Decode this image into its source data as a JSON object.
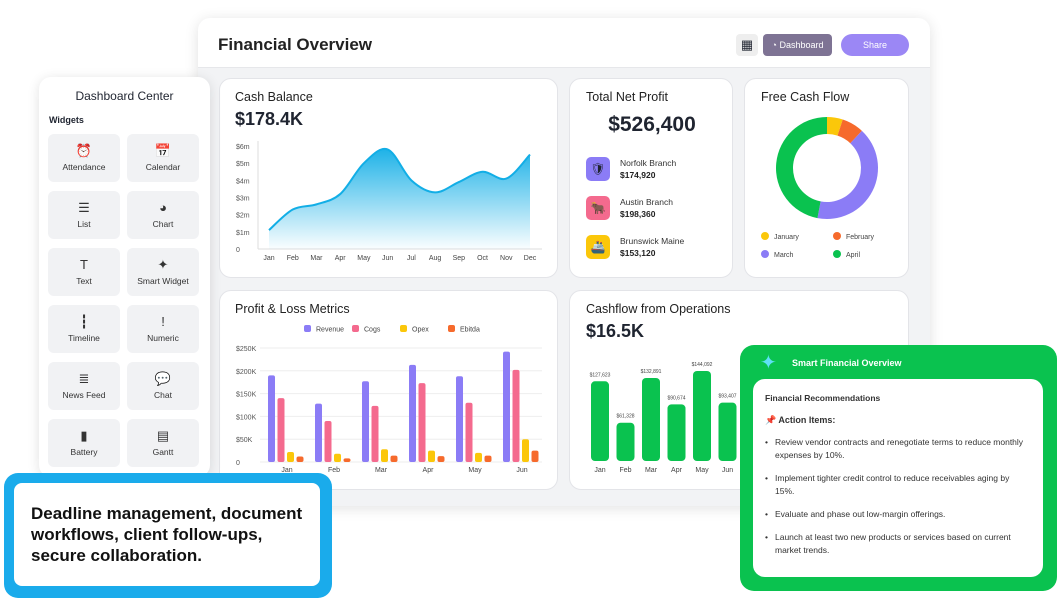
{
  "header": {
    "title": "Financial Overview",
    "grid_icon": "grid-icon",
    "dashboard_label": "Dashboard",
    "share_label": "Share"
  },
  "cash_balance": {
    "title": "Cash Balance",
    "value": "$178.4K"
  },
  "net_profit": {
    "title": "Total Net Profit",
    "value": "$526,400",
    "branches": [
      {
        "name": "Norfolk Branch",
        "value": "$174,920",
        "color": "#8b7cf6",
        "icon": "shield-icon"
      },
      {
        "name": "Austin Branch",
        "value": "$198,360",
        "color": "#f46a8e",
        "icon": "bull-icon"
      },
      {
        "name": "Brunswick Maine",
        "value": "$153,120",
        "color": "#fbc70a",
        "icon": "ship-icon"
      }
    ]
  },
  "free_cash_flow": {
    "title": "Free Cash Flow"
  },
  "pl": {
    "title": "Profit & Loss Metrics"
  },
  "cashflow_ops": {
    "title": "Cashflow from Operations",
    "value": "$16.5K"
  },
  "sidebar": {
    "title": "Dashboard Center",
    "section": "Widgets",
    "items": [
      {
        "label": "Attendance",
        "icon": "clock-icon"
      },
      {
        "label": "Calendar",
        "icon": "calendar-icon"
      },
      {
        "label": "List",
        "icon": "list-icon"
      },
      {
        "label": "Chart",
        "icon": "pie-chart-icon"
      },
      {
        "label": "Text",
        "icon": "text-icon"
      },
      {
        "label": "Smart Widget",
        "icon": "sparkle-icon"
      },
      {
        "label": "Timeline",
        "icon": "timeline-icon"
      },
      {
        "label": "Numeric",
        "icon": "numeric-icon"
      },
      {
        "label": "News Feed",
        "icon": "news-icon"
      },
      {
        "label": "Chat",
        "icon": "chat-icon"
      },
      {
        "label": "Battery",
        "icon": "battery-icon"
      },
      {
        "label": "Gantt",
        "icon": "gantt-icon"
      }
    ]
  },
  "callout": {
    "text": "Deadline management, document workflows, client follow-ups, secure collaboration."
  },
  "smart_overview": {
    "title": "Smart Financial Overview",
    "subtitle": "Financial Recommendations",
    "action_title": "Action Items:",
    "items": [
      "Review vendor contracts and renegotiate terms to reduce monthly expenses by 10%.",
      "Implement tighter credit control to reduce receivables aging by 15%.",
      "Evaluate and phase out low-margin offerings.",
      "Launch at least two new products or services based on current market trends."
    ]
  },
  "chart_data": [
    {
      "type": "area",
      "categories": [
        "Jan",
        "Feb",
        "Mar",
        "Apr",
        "May",
        "Jun",
        "Jul",
        "Aug",
        "Sep",
        "Oct",
        "Nov",
        "Dec"
      ],
      "values": [
        1.1,
        2.3,
        2.6,
        3.2,
        5.0,
        5.8,
        4.0,
        3.3,
        3.9,
        4.5,
        4.1,
        5.5
      ],
      "yticks": [
        "0",
        "$1m",
        "$2m",
        "$3m",
        "$4m",
        "$5m",
        "$6m"
      ],
      "ylim": [
        0,
        6
      ],
      "color": "#12aee6"
    },
    {
      "type": "pie",
      "categories": [
        "January",
        "February",
        "March",
        "April"
      ],
      "values": [
        5,
        7,
        41,
        47
      ],
      "colors": [
        "#fbc70a",
        "#f66a2c",
        "#8b7cf6",
        "#0ac24f"
      ],
      "legend": "bottom"
    },
    {
      "type": "bar",
      "categories": [
        "Jan",
        "Feb",
        "Mar",
        "Apr",
        "May",
        "Jun"
      ],
      "yticks": [
        "0",
        "$50K",
        "$100K",
        "$150K",
        "$200K",
        "$250K"
      ],
      "ylim": [
        0,
        250
      ],
      "legend": "top",
      "series": [
        {
          "name": "Revenue",
          "color": "#8b7cf6",
          "values": [
            190,
            128,
            177,
            213,
            188,
            242
          ]
        },
        {
          "name": "Cogs",
          "color": "#f46a8e",
          "values": [
            140,
            90,
            123,
            173,
            130,
            202
          ]
        },
        {
          "name": "Opex",
          "color": "#fbc70a",
          "values": [
            22,
            18,
            28,
            25,
            20,
            50
          ]
        },
        {
          "name": "Ebitda",
          "color": "#f66a2c",
          "values": [
            12,
            8,
            14,
            13,
            14,
            25
          ]
        }
      ]
    },
    {
      "type": "bar",
      "categories": [
        "Jan",
        "Feb",
        "Mar",
        "Apr",
        "May",
        "Jun"
      ],
      "values": [
        127623,
        61328,
        132891,
        90674,
        144092,
        93407
      ],
      "labels": [
        "$127,623",
        "$61,328",
        "$132,891",
        "$90,674",
        "$144,092",
        "$93,407"
      ],
      "color": "#0ac24f"
    }
  ]
}
